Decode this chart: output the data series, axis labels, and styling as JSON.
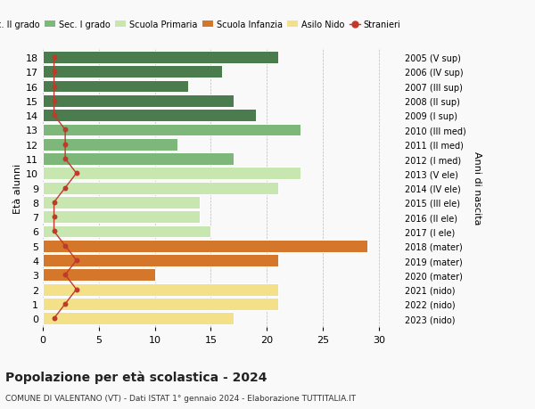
{
  "ages": [
    18,
    17,
    16,
    15,
    14,
    13,
    12,
    11,
    10,
    9,
    8,
    7,
    6,
    5,
    4,
    3,
    2,
    1,
    0
  ],
  "labels_right": [
    "2005 (V sup)",
    "2006 (IV sup)",
    "2007 (III sup)",
    "2008 (II sup)",
    "2009 (I sup)",
    "2010 (III med)",
    "2011 (II med)",
    "2012 (I med)",
    "2013 (V ele)",
    "2014 (IV ele)",
    "2015 (III ele)",
    "2016 (II ele)",
    "2017 (I ele)",
    "2018 (mater)",
    "2019 (mater)",
    "2020 (mater)",
    "2021 (nido)",
    "2022 (nido)",
    "2023 (nido)"
  ],
  "bar_values": [
    21,
    16,
    13,
    17,
    19,
    23,
    12,
    17,
    23,
    21,
    14,
    14,
    15,
    29,
    21,
    10,
    21,
    21,
    17
  ],
  "bar_colors": [
    "#4a7c4e",
    "#4a7c4e",
    "#4a7c4e",
    "#4a7c4e",
    "#4a7c4e",
    "#7db87a",
    "#7db87a",
    "#7db87a",
    "#c8e6b0",
    "#c8e6b0",
    "#c8e6b0",
    "#c8e6b0",
    "#c8e6b0",
    "#d4772a",
    "#d4772a",
    "#d4772a",
    "#f5e08a",
    "#f5e08a",
    "#f5e08a"
  ],
  "stranieri_values": [
    1,
    1,
    1,
    1,
    1,
    2,
    2,
    2,
    3,
    2,
    1,
    1,
    1,
    2,
    3,
    2,
    3,
    2,
    1
  ],
  "stranieri_color": "#c0392b",
  "legend_labels": [
    "Sec. II grado",
    "Sec. I grado",
    "Scuola Primaria",
    "Scuola Infanzia",
    "Asilo Nido",
    "Stranieri"
  ],
  "legend_colors": [
    "#4a7c4e",
    "#7db87a",
    "#c8e6b0",
    "#d4772a",
    "#f5e08a",
    "#c0392b"
  ],
  "ylabel_left": "Età alunni",
  "ylabel_right": "Anni di nascita",
  "title": "Popolazione per età scolastica - 2024",
  "subtitle": "COMUNE DI VALENTANO (VT) - Dati ISTAT 1° gennaio 2024 - Elaborazione TUTTITALIA.IT",
  "xlim": [
    0,
    32
  ],
  "xticks": [
    0,
    5,
    10,
    15,
    20,
    25,
    30
  ],
  "bg_color": "#f9f9f9",
  "grid_color": "#bbbbbb"
}
